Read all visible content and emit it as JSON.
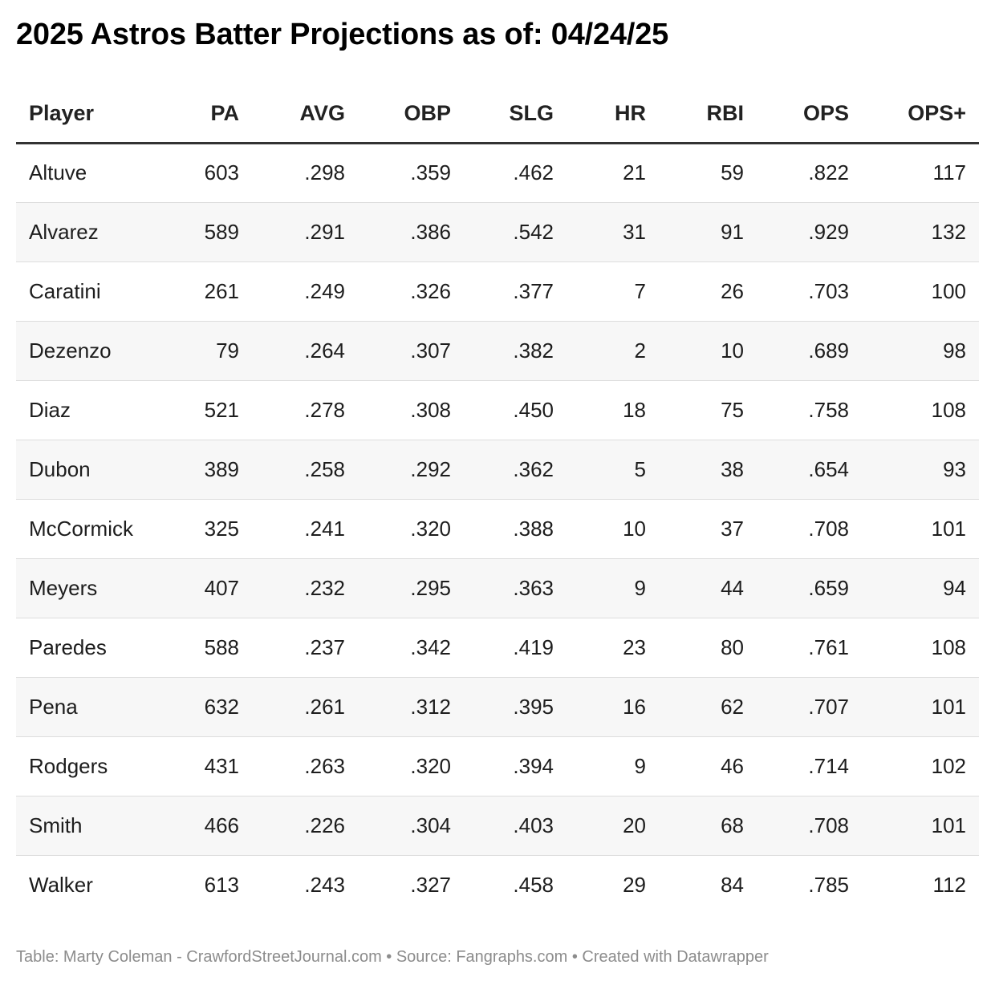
{
  "title": "2025 Astros Batter Projections as of: 04/24/25",
  "footer": "Table: Marty Coleman - CrawfordStreetJournal.com • Source: Fangraphs.com • Created with Datawrapper",
  "chart_data": {
    "type": "table",
    "title": "2025 Astros Batter Projections as of: 04/24/25",
    "columns": [
      "Player",
      "PA",
      "AVG",
      "OBP",
      "SLG",
      "HR",
      "RBI",
      "OPS",
      "OPS+"
    ],
    "rows": [
      [
        "Altuve",
        "603",
        ".298",
        ".359",
        ".462",
        "21",
        "59",
        ".822",
        "117"
      ],
      [
        "Alvarez",
        "589",
        ".291",
        ".386",
        ".542",
        "31",
        "91",
        ".929",
        "132"
      ],
      [
        "Caratini",
        "261",
        ".249",
        ".326",
        ".377",
        "7",
        "26",
        ".703",
        "100"
      ],
      [
        "Dezenzo",
        "79",
        ".264",
        ".307",
        ".382",
        "2",
        "10",
        ".689",
        "98"
      ],
      [
        "Diaz",
        "521",
        ".278",
        ".308",
        ".450",
        "18",
        "75",
        ".758",
        "108"
      ],
      [
        "Dubon",
        "389",
        ".258",
        ".292",
        ".362",
        "5",
        "38",
        ".654",
        "93"
      ],
      [
        "McCormick",
        "325",
        ".241",
        ".320",
        ".388",
        "10",
        "37",
        ".708",
        "101"
      ],
      [
        "Meyers",
        "407",
        ".232",
        ".295",
        ".363",
        "9",
        "44",
        ".659",
        "94"
      ],
      [
        "Paredes",
        "588",
        ".237",
        ".342",
        ".419",
        "23",
        "80",
        ".761",
        "108"
      ],
      [
        "Pena",
        "632",
        ".261",
        ".312",
        ".395",
        "16",
        "62",
        ".707",
        "101"
      ],
      [
        "Rodgers",
        "431",
        ".263",
        ".320",
        ".394",
        "9",
        "46",
        ".714",
        "102"
      ],
      [
        "Smith",
        "466",
        ".226",
        ".304",
        ".403",
        "20",
        "68",
        ".708",
        "101"
      ],
      [
        "Walker",
        "613",
        ".243",
        ".327",
        ".458",
        "29",
        "84",
        ".785",
        "112"
      ]
    ]
  }
}
